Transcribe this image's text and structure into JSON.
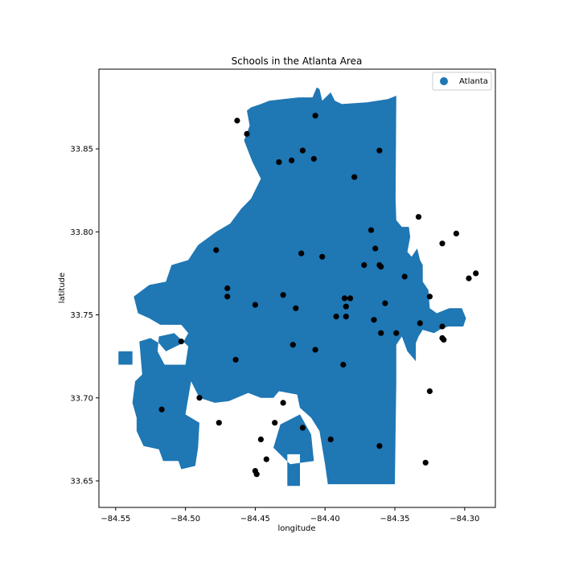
{
  "chart_data": {
    "type": "scatter",
    "title": "Schools in the Atlanta Area",
    "xlabel": "longitude",
    "ylabel": "latitude",
    "xlim": [
      -84.562,
      -84.278
    ],
    "ylim": [
      33.634,
      33.898
    ],
    "xticks": [
      -84.55,
      -84.5,
      -84.45,
      -84.4,
      -84.35,
      -84.3
    ],
    "xtick_labels": [
      "−84.55",
      "−84.50",
      "−84.45",
      "−84.40",
      "−84.35",
      "−84.30"
    ],
    "yticks": [
      33.65,
      33.7,
      33.75,
      33.8,
      33.85
    ],
    "ytick_labels": [
      "33.65",
      "33.70",
      "33.75",
      "33.80",
      "33.85"
    ],
    "grid": false,
    "legend": {
      "position": "top-right",
      "entries": [
        {
          "label": "Atlanta",
          "color": "#1f77b4",
          "marker": "circle"
        }
      ]
    },
    "region": {
      "name": "Atlanta",
      "color": "#1f77b4",
      "outline": [
        [
          -84.456,
          33.873
        ],
        [
          -84.453,
          33.875
        ],
        [
          -84.446,
          33.877
        ],
        [
          -84.44,
          33.879
        ],
        [
          -84.43,
          33.88
        ],
        [
          -84.419,
          33.881
        ],
        [
          -84.409,
          33.881
        ],
        [
          -84.406,
          33.887
        ],
        [
          -84.404,
          33.886
        ],
        [
          -84.402,
          33.879
        ],
        [
          -84.396,
          33.884
        ],
        [
          -84.393,
          33.879
        ],
        [
          -84.388,
          33.877
        ],
        [
          -84.37,
          33.878
        ],
        [
          -84.355,
          33.88
        ],
        [
          -84.349,
          33.882
        ],
        [
          -84.3495,
          33.82
        ],
        [
          -84.349,
          33.807
        ],
        [
          -84.345,
          33.803
        ],
        [
          -84.34,
          33.803
        ],
        [
          -84.339,
          33.797
        ],
        [
          -84.341,
          33.788
        ],
        [
          -84.338,
          33.785
        ],
        [
          -84.334,
          33.79
        ],
        [
          -84.332,
          33.783
        ],
        [
          -84.33,
          33.78
        ],
        [
          -84.33,
          33.77
        ],
        [
          -84.326,
          33.765
        ],
        [
          -84.325,
          33.754
        ],
        [
          -84.32,
          33.751
        ],
        [
          -84.311,
          33.754
        ],
        [
          -84.302,
          33.754
        ],
        [
          -84.299,
          33.748
        ],
        [
          -84.301,
          33.743
        ],
        [
          -84.312,
          33.743
        ],
        [
          -84.318,
          33.741
        ],
        [
          -84.322,
          33.739
        ],
        [
          -84.33,
          33.741
        ],
        [
          -84.333,
          33.737
        ],
        [
          -84.335,
          33.733
        ],
        [
          -84.335,
          33.722
        ],
        [
          -84.341,
          33.728
        ],
        [
          -84.345,
          33.737
        ],
        [
          -84.349,
          33.732
        ],
        [
          -84.349,
          33.71
        ],
        [
          -84.35,
          33.648
        ],
        [
          -84.398,
          33.648
        ],
        [
          -84.4,
          33.66
        ],
        [
          -84.404,
          33.68
        ],
        [
          -84.41,
          33.688
        ],
        [
          -84.418,
          33.694
        ],
        [
          -84.42,
          33.702
        ],
        [
          -84.433,
          33.704
        ],
        [
          -84.437,
          33.7
        ],
        [
          -84.446,
          33.7
        ],
        [
          -84.455,
          33.703
        ],
        [
          -84.469,
          33.698
        ],
        [
          -84.479,
          33.697
        ],
        [
          -84.49,
          33.7
        ],
        [
          -84.496,
          33.71
        ],
        [
          -84.5,
          33.69
        ],
        [
          -84.49,
          33.685
        ],
        [
          -84.491,
          33.67
        ],
        [
          -84.493,
          33.659
        ],
        [
          -84.503,
          33.657
        ],
        [
          -84.505,
          33.662
        ],
        [
          -84.516,
          33.662
        ],
        [
          -84.519,
          33.669
        ],
        [
          -84.53,
          33.671
        ],
        [
          -84.535,
          33.68
        ],
        [
          -84.535,
          33.688
        ],
        [
          -84.538,
          33.697
        ],
        [
          -84.536,
          33.71
        ],
        [
          -84.531,
          33.714
        ],
        [
          -84.533,
          33.734
        ],
        [
          -84.525,
          33.736
        ],
        [
          -84.519,
          33.733
        ],
        [
          -84.514,
          33.728
        ],
        [
          -84.502,
          33.733
        ],
        [
          -84.498,
          33.739
        ],
        [
          -84.503,
          33.744
        ],
        [
          -84.518,
          33.744
        ],
        [
          -84.526,
          33.748
        ],
        [
          -84.534,
          33.751
        ],
        [
          -84.537,
          33.761
        ],
        [
          -84.526,
          33.768
        ],
        [
          -84.514,
          33.77
        ],
        [
          -84.51,
          33.78
        ],
        [
          -84.498,
          33.783
        ],
        [
          -84.491,
          33.792
        ],
        [
          -84.478,
          33.8
        ],
        [
          -84.468,
          33.805
        ],
        [
          -84.46,
          33.814
        ],
        [
          -84.453,
          33.82
        ],
        [
          -84.446,
          33.832
        ],
        [
          -84.452,
          33.842
        ],
        [
          -84.458,
          33.855
        ],
        [
          -84.454,
          33.864
        ]
      ],
      "holes": [
        [
          [
            -84.519,
            33.737
          ],
          [
            -84.508,
            33.739
          ],
          [
            -84.498,
            33.731
          ],
          [
            -84.5,
            33.72
          ],
          [
            -84.515,
            33.72
          ],
          [
            -84.52,
            33.728
          ]
        ],
        [
          [
            -84.432,
            33.684
          ],
          [
            -84.418,
            33.69
          ],
          [
            -84.41,
            33.678
          ],
          [
            -84.408,
            33.662
          ],
          [
            -84.425,
            33.66
          ],
          [
            -84.437,
            33.67
          ]
        ]
      ],
      "islands": [
        [
          [
            -84.548,
            33.728
          ],
          [
            -84.538,
            33.728
          ],
          [
            -84.538,
            33.72
          ],
          [
            -84.548,
            33.72
          ]
        ],
        [
          [
            -84.427,
            33.666
          ],
          [
            -84.418,
            33.666
          ],
          [
            -84.418,
            33.647
          ],
          [
            -84.427,
            33.647
          ]
        ]
      ]
    },
    "points": {
      "color": "#000000",
      "x": [
        -84.463,
        -84.407,
        -84.456,
        -84.416,
        -84.361,
        -84.433,
        -84.424,
        -84.408,
        -84.379,
        -84.333,
        -84.306,
        -84.367,
        -84.316,
        -84.478,
        -84.364,
        -84.417,
        -84.402,
        -84.372,
        -84.361,
        -84.36,
        -84.343,
        -84.297,
        -84.292,
        -84.47,
        -84.47,
        -84.43,
        -84.386,
        -84.382,
        -84.385,
        -84.357,
        -84.45,
        -84.421,
        -84.392,
        -84.385,
        -84.365,
        -84.332,
        -84.325,
        -84.316,
        -84.36,
        -84.349,
        -84.316,
        -84.315,
        -84.503,
        -84.423,
        -84.407,
        -84.464,
        -84.387,
        -84.49,
        -84.517,
        -84.43,
        -84.436,
        -84.476,
        -84.325,
        -84.416,
        -84.446,
        -84.396,
        -84.361,
        -84.442,
        -84.45,
        -84.449,
        -84.328
      ],
      "y": [
        33.867,
        33.87,
        33.859,
        33.849,
        33.849,
        33.842,
        33.843,
        33.844,
        33.833,
        33.809,
        33.799,
        33.801,
        33.793,
        33.789,
        33.79,
        33.787,
        33.785,
        33.78,
        33.78,
        33.779,
        33.773,
        33.772,
        33.775,
        33.766,
        33.761,
        33.762,
        33.76,
        33.76,
        33.755,
        33.757,
        33.756,
        33.754,
        33.749,
        33.749,
        33.747,
        33.745,
        33.761,
        33.743,
        33.739,
        33.739,
        33.736,
        33.735,
        33.734,
        33.732,
        33.729,
        33.723,
        33.72,
        33.7,
        33.693,
        33.697,
        33.685,
        33.685,
        33.704,
        33.682,
        33.675,
        33.675,
        33.671,
        33.663,
        33.656,
        33.654,
        33.661
      ]
    }
  }
}
